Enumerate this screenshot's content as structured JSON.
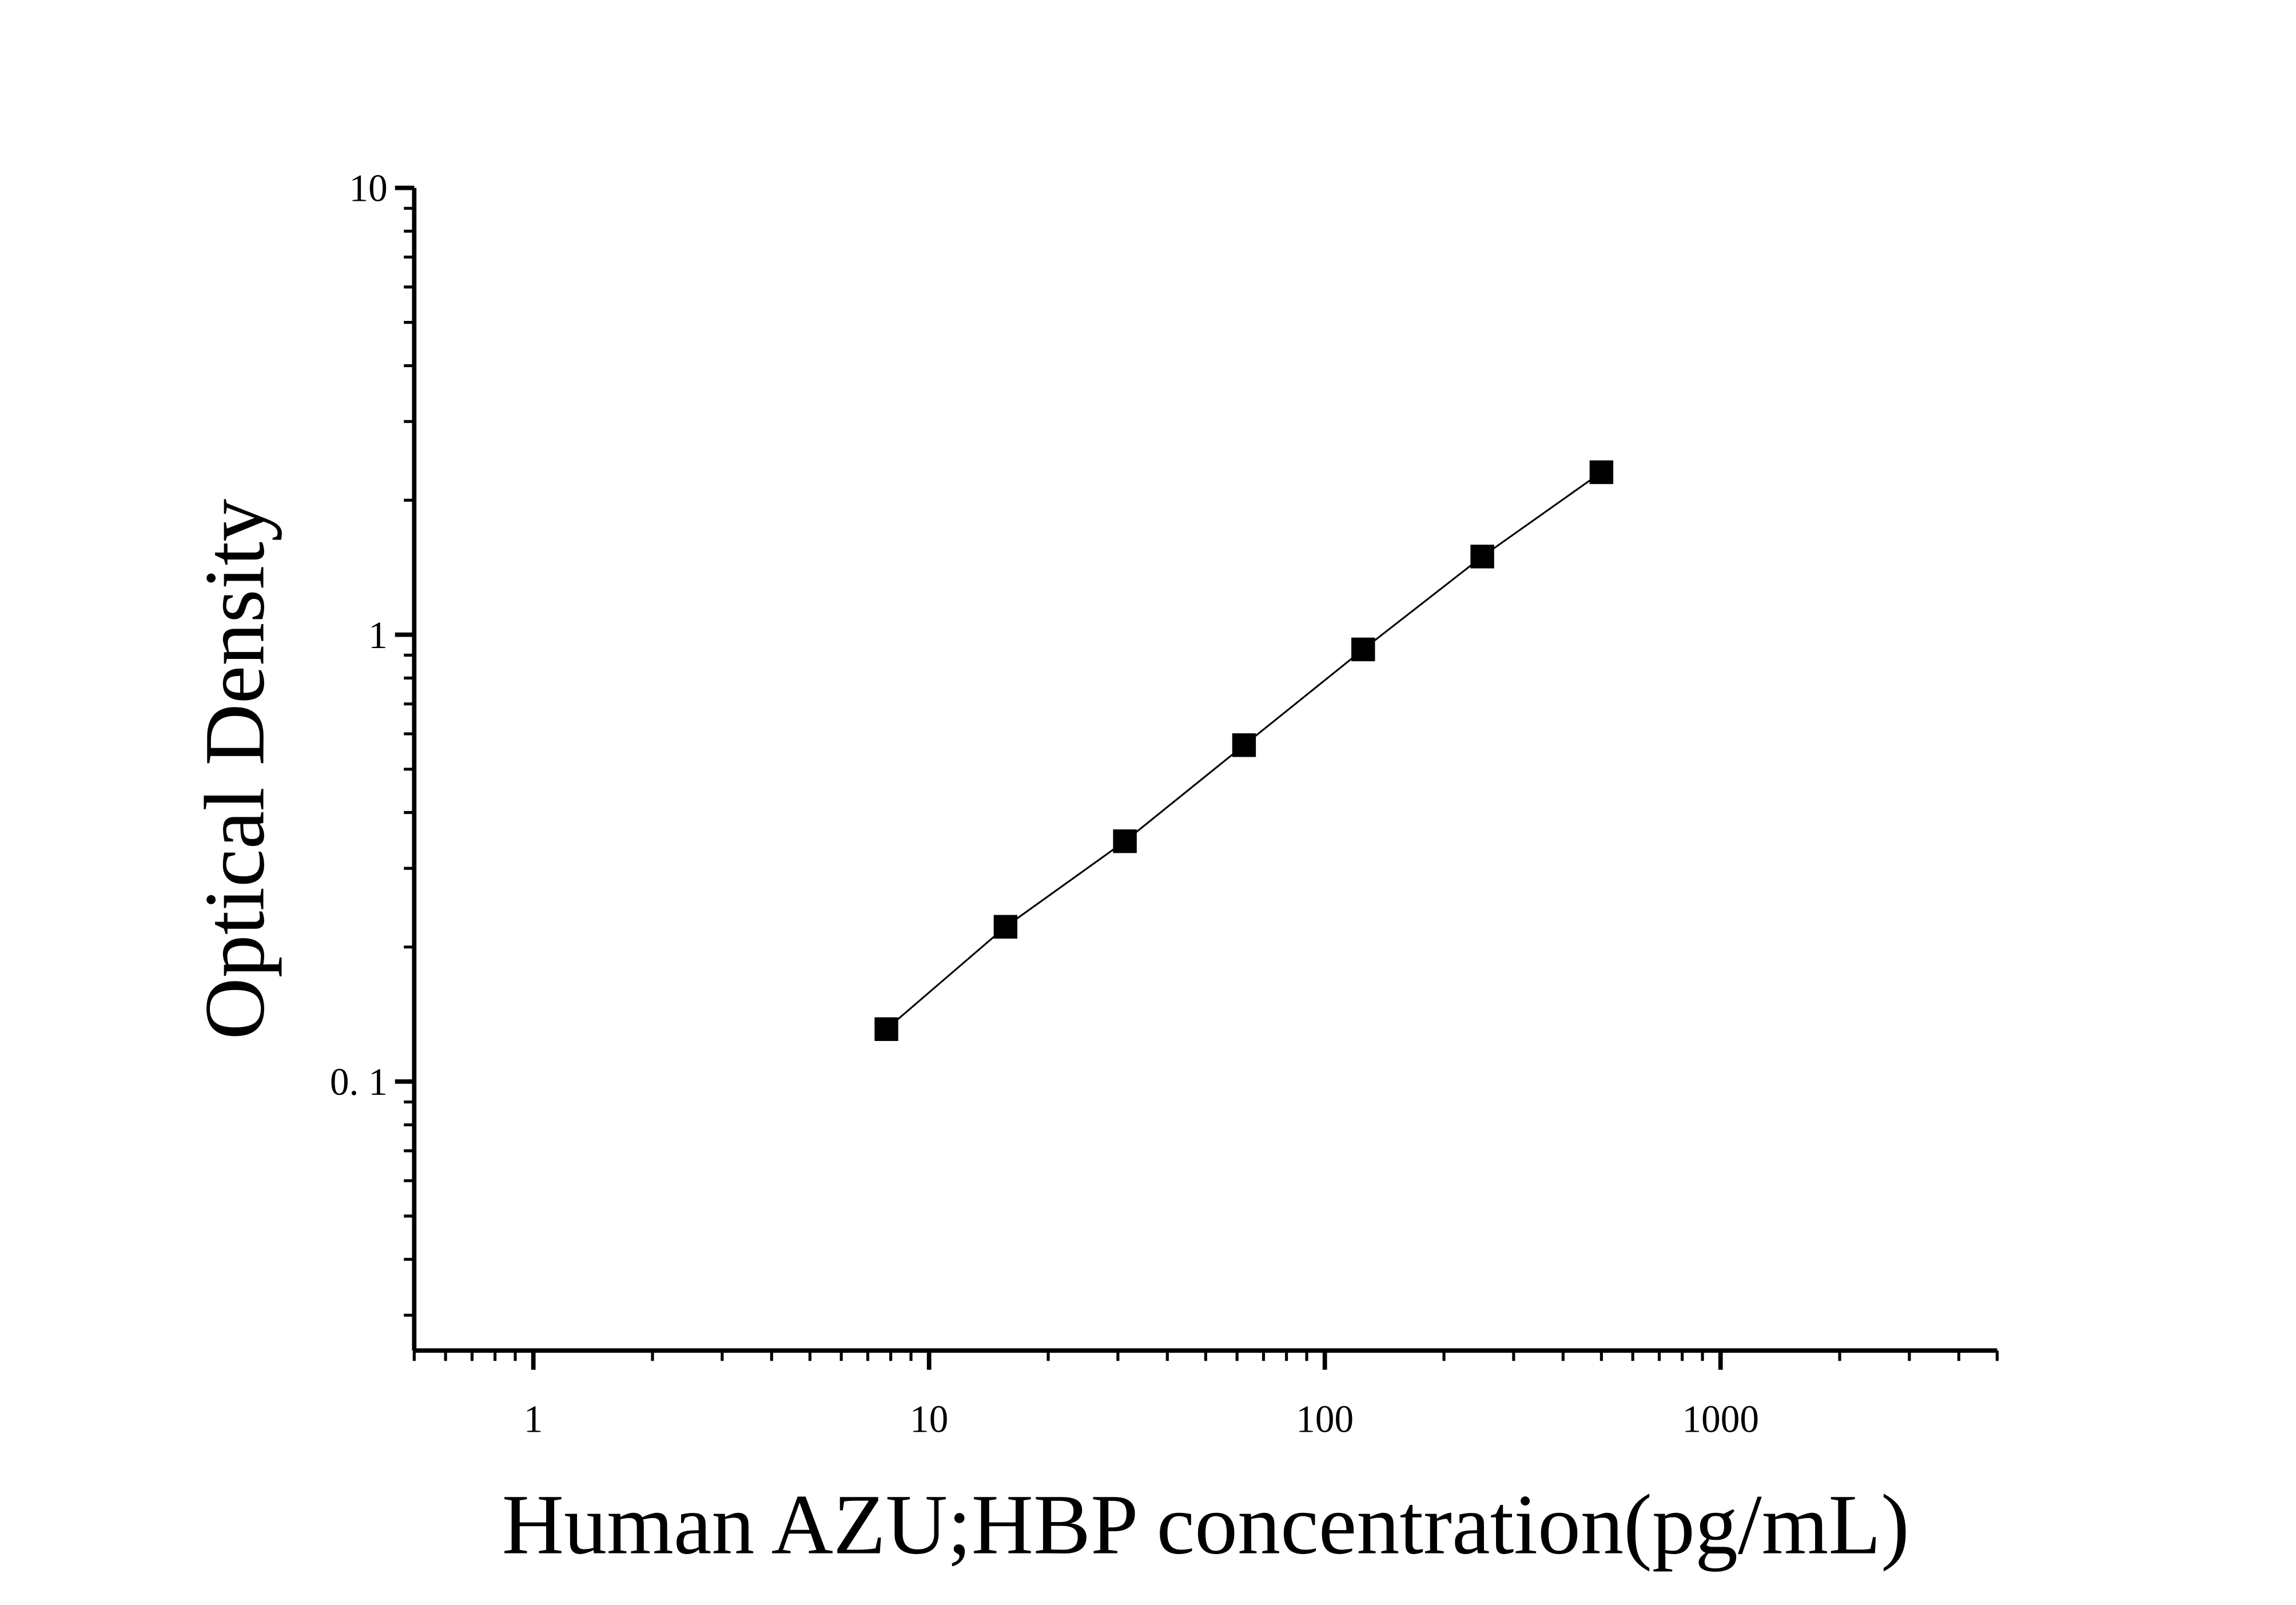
{
  "chart_data": {
    "type": "scatter",
    "x_label": "Human AZU;HBP concentration(pg/mL)",
    "y_label": "Optical Density",
    "xscale": "log",
    "yscale": "log",
    "xlim": [
      0.5,
      5000
    ],
    "ylim": [
      0.025,
      10
    ],
    "xticks": [
      1,
      10,
      100,
      1000
    ],
    "yticks": [
      {
        "value": 0.1,
        "label": "0. 1"
      },
      1,
      10
    ],
    "minor_ticks": true,
    "fit_line": true,
    "x": [
      7.8,
      15.6,
      31.25,
      62.5,
      125,
      250,
      500
    ],
    "values": [
      0.131,
      0.222,
      0.345,
      0.566,
      0.927,
      1.496,
      2.31
    ],
    "color": "#000000"
  }
}
